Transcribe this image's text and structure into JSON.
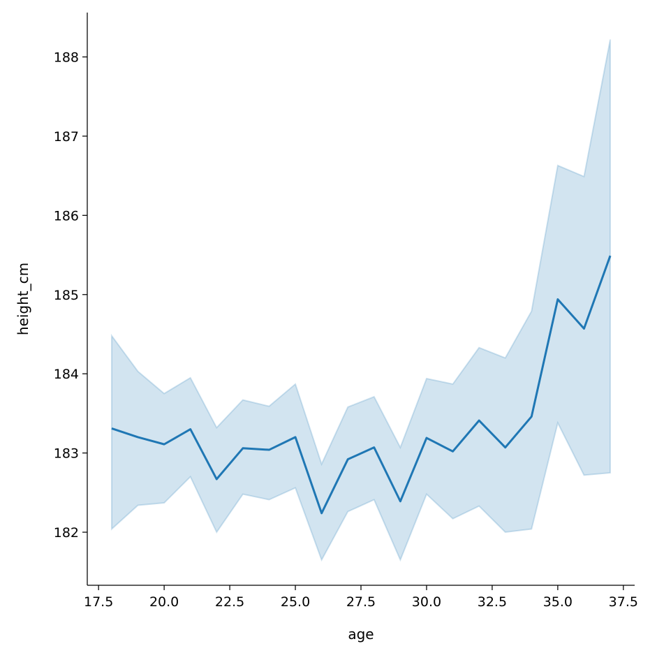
{
  "chart_data": {
    "type": "line",
    "title": "",
    "xlabel": "age",
    "ylabel": "height_cm",
    "xlim": [
      17.07,
      37.93
    ],
    "ylim": [
      181.33,
      188.56
    ],
    "xticks": [
      17.5,
      20.0,
      22.5,
      25.0,
      27.5,
      30.0,
      32.5,
      35.0,
      37.5
    ],
    "xtick_labels": [
      "17.5",
      "20.0",
      "22.5",
      "25.0",
      "27.5",
      "30.0",
      "32.5",
      "35.0",
      "37.5"
    ],
    "yticks": [
      182,
      183,
      184,
      185,
      186,
      187,
      188
    ],
    "ytick_labels": [
      "182",
      "183",
      "184",
      "185",
      "186",
      "187",
      "188"
    ],
    "grid": false,
    "color": "#1f77b4",
    "band_opacity": 0.2,
    "x": [
      18,
      19,
      20,
      21,
      22,
      23,
      24,
      25,
      26,
      27,
      28,
      29,
      30,
      31,
      32,
      33,
      34,
      35,
      36,
      37
    ],
    "series": [
      {
        "values": [
          183.31,
          183.2,
          183.11,
          183.3,
          182.67,
          183.06,
          183.04,
          183.2,
          182.24,
          182.92,
          183.07,
          182.39,
          183.19,
          183.02,
          183.41,
          183.07,
          183.46,
          184.94,
          184.57,
          185.49
        ],
        "ci_upper": [
          184.48,
          184.03,
          183.75,
          183.95,
          183.32,
          183.67,
          183.59,
          183.87,
          182.86,
          183.58,
          183.71,
          183.07,
          183.94,
          183.87,
          184.33,
          184.2,
          184.79,
          186.63,
          186.49,
          188.22
        ],
        "ci_lower": [
          182.04,
          182.34,
          182.37,
          182.7,
          182.0,
          182.48,
          182.41,
          182.56,
          181.65,
          182.26,
          182.41,
          181.65,
          182.48,
          182.17,
          182.33,
          182.0,
          182.04,
          183.38,
          182.72,
          182.75
        ]
      }
    ]
  }
}
